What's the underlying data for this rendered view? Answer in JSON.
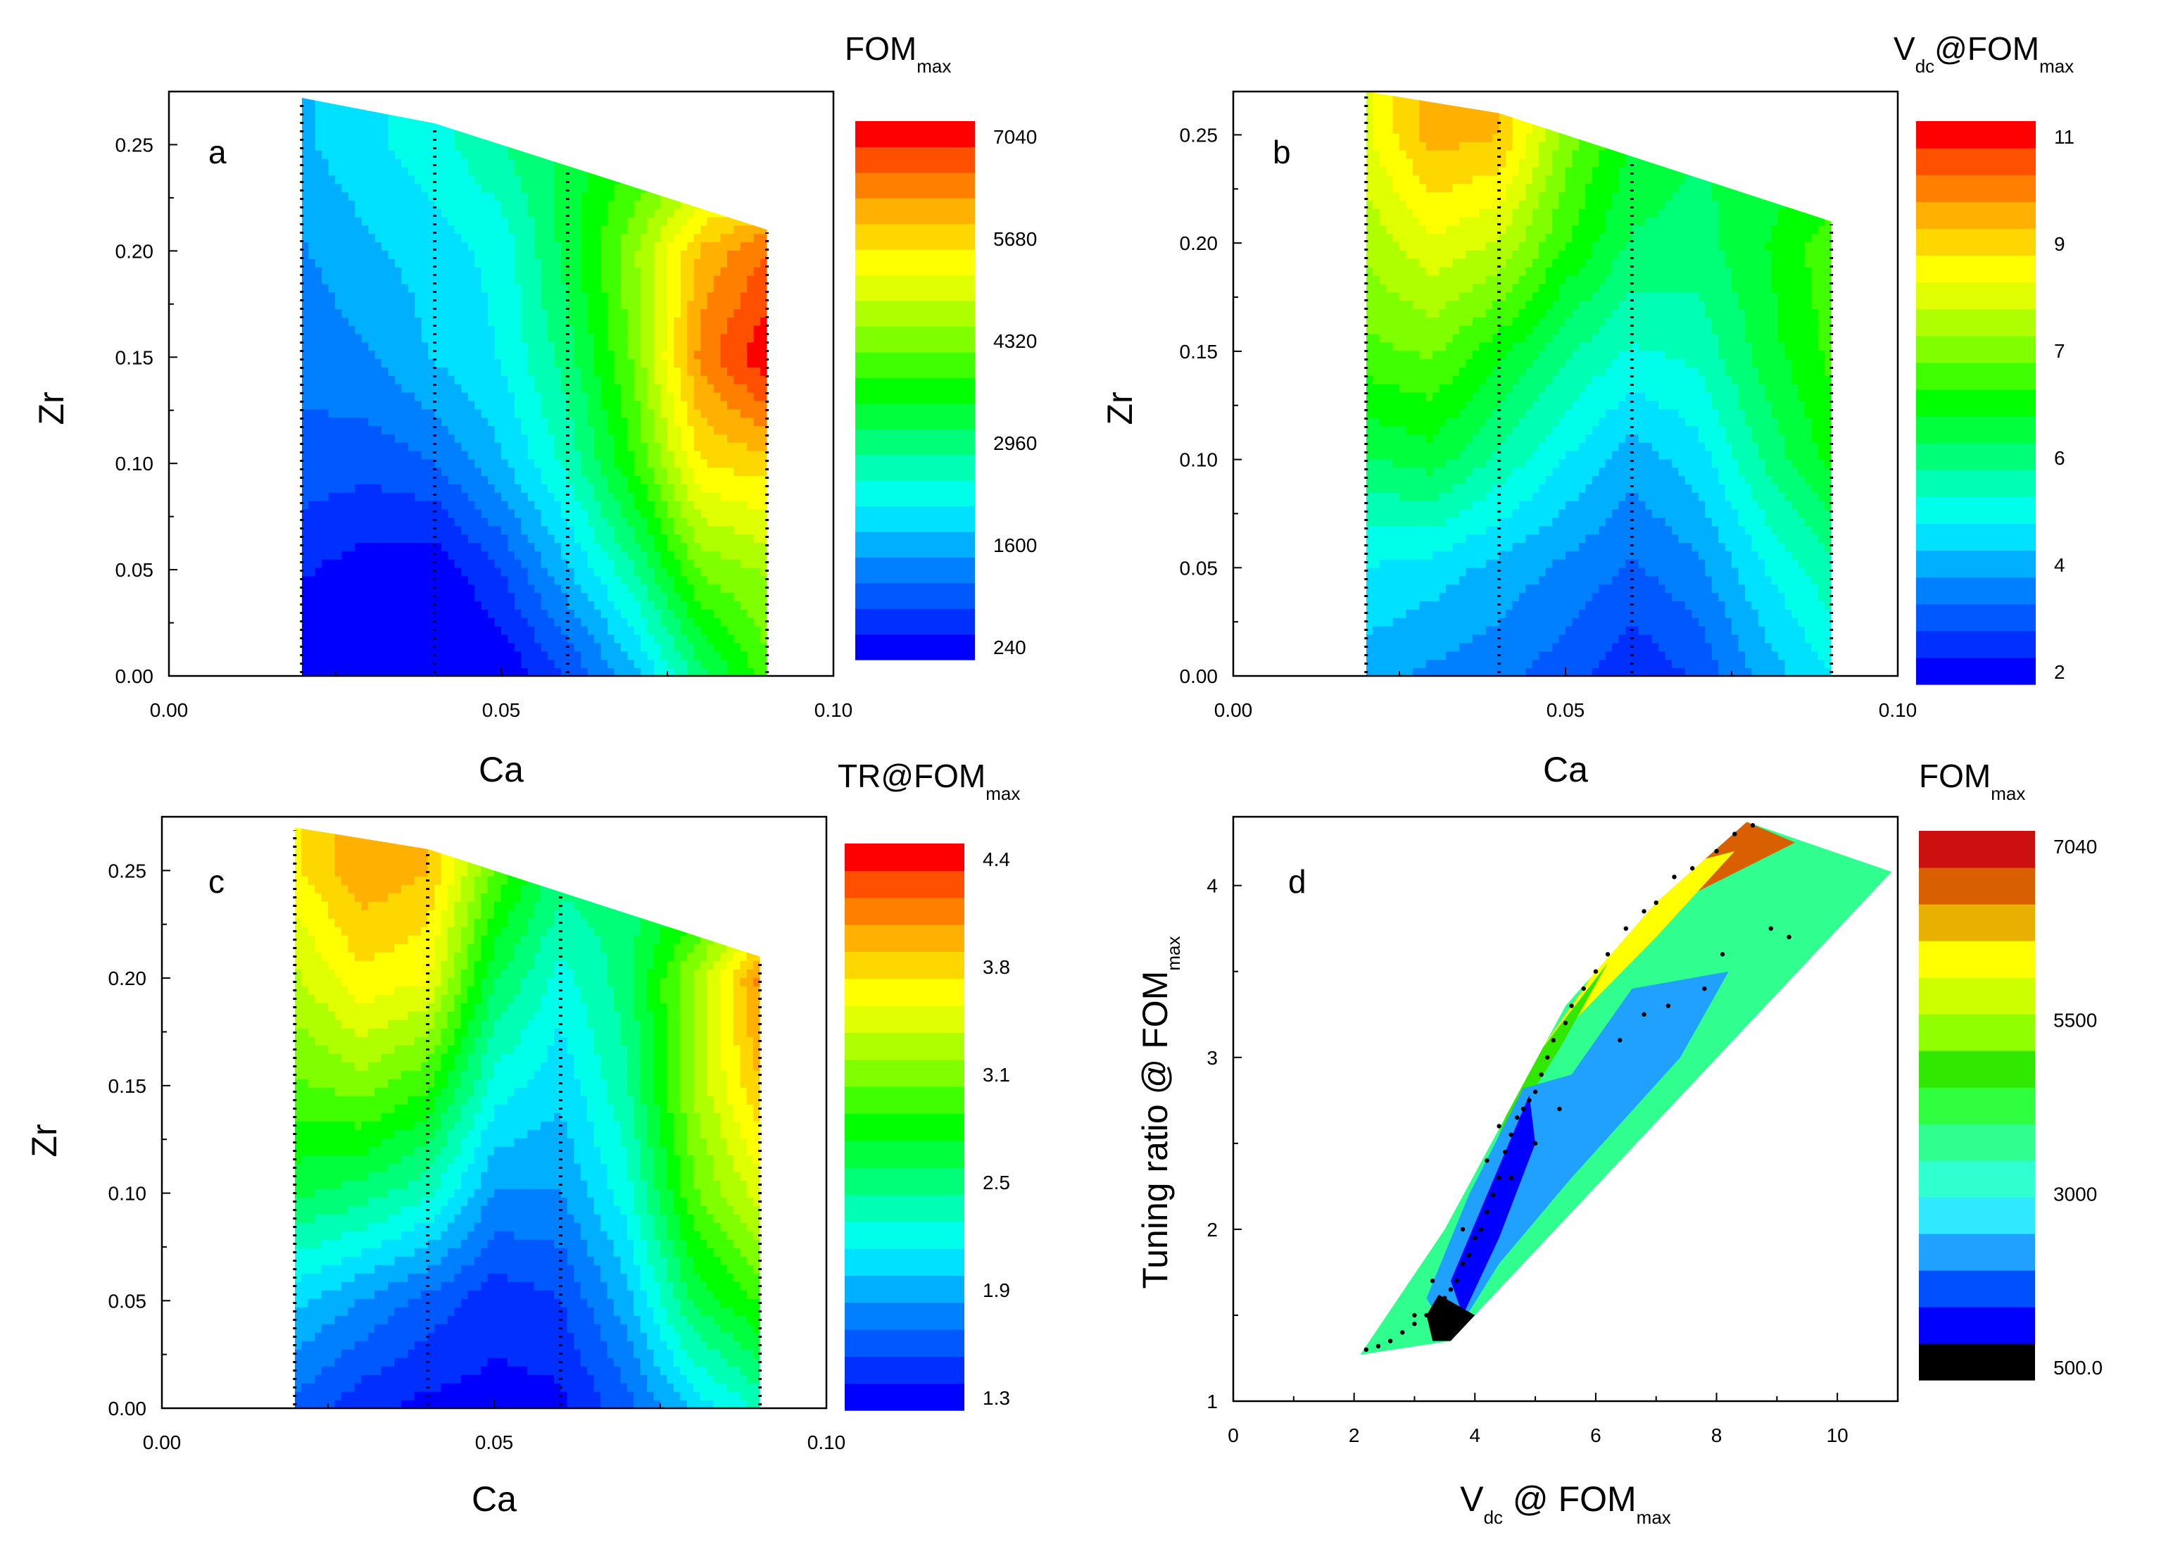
{
  "figure": {
    "panels": [
      "a",
      "b",
      "c",
      "d"
    ]
  },
  "chart_data": [
    {
      "type": "heatmap",
      "panel_label": "a",
      "xlabel": "Ca",
      "ylabel": "Zr",
      "xlim": [
        0.0,
        0.1
      ],
      "ylim": [
        0.0,
        0.275
      ],
      "x_ticks": [
        "0.00",
        "0.05",
        "0.10"
      ],
      "y_ticks": [
        "0.00",
        "0.05",
        "0.10",
        "0.15",
        "0.20",
        "0.25"
      ],
      "colorbar": {
        "title": "FOM",
        "title_sub": "max",
        "tick_labels": [
          "240",
          "1600",
          "2960",
          "4320",
          "5680",
          "7040"
        ],
        "range": [
          240,
          7040
        ],
        "colors": [
          "#0000ff",
          "#0030ff",
          "#0058ff",
          "#0080ff",
          "#00b0ff",
          "#00e0ff",
          "#00ffea",
          "#00ffb4",
          "#00ff78",
          "#00ff3c",
          "#00ff00",
          "#40ff00",
          "#80ff00",
          "#b0ff00",
          "#e0ff00",
          "#ffff00",
          "#ffd700",
          "#ffb000",
          "#ff8000",
          "#ff5000",
          "#ff0000"
        ]
      },
      "x_lines": [
        0.02,
        0.04,
        0.06,
        0.09
      ],
      "boundary_top": [
        [
          0.02,
          0.272
        ],
        [
          0.04,
          0.26
        ],
        [
          0.06,
          0.24
        ],
        [
          0.09,
          0.21
        ]
      ],
      "field": {
        "x": [
          0.02,
          0.03,
          0.04,
          0.05,
          0.06,
          0.07,
          0.08,
          0.09
        ],
        "y": [
          0.0,
          0.05,
          0.1,
          0.15,
          0.2,
          0.25
        ],
        "values": [
          [
            250,
            240,
            240,
            260,
            900,
            1700,
            3000,
            4000
          ],
          [
            600,
            400,
            300,
            900,
            1800,
            2800,
            4200,
            4500
          ],
          [
            1100,
            1000,
            1200,
            1800,
            2600,
            3800,
            5400,
            5600
          ],
          [
            1300,
            1500,
            1900,
            2200,
            3000,
            4200,
            6200,
            7000
          ],
          [
            1500,
            1800,
            2000,
            2300,
            3300,
            4400,
            5800,
            6400
          ],
          [
            1800,
            2100,
            2400,
            2800,
            3300,
            3700,
            4200,
            4500
          ]
        ]
      }
    },
    {
      "type": "heatmap",
      "panel_label": "b",
      "xlabel": "Ca",
      "ylabel": "Zr",
      "xlim": [
        0.0,
        0.1
      ],
      "ylim": [
        0.0,
        0.27
      ],
      "x_ticks": [
        "0.00",
        "0.05",
        "0.10"
      ],
      "y_ticks": [
        "0.00",
        "0.05",
        "0.10",
        "0.15",
        "0.20",
        "0.25"
      ],
      "colorbar": {
        "title": "V",
        "title_sub": "dc",
        "title_tail": "@FOM",
        "title_sub2": "max",
        "tick_labels": [
          "2",
          "4",
          "6",
          "7",
          "9",
          "11"
        ],
        "range": [
          1.5,
          11
        ],
        "colors": [
          "#0000ff",
          "#0030ff",
          "#0058ff",
          "#0080ff",
          "#00b0ff",
          "#00e0ff",
          "#00ffea",
          "#00ffb4",
          "#00ff78",
          "#00ff3c",
          "#00ff00",
          "#40ff00",
          "#80ff00",
          "#b0ff00",
          "#e0ff00",
          "#ffff00",
          "#ffd700",
          "#ffb000",
          "#ff8000",
          "#ff5000",
          "#ff0000"
        ]
      },
      "x_lines": [
        0.02,
        0.04,
        0.06,
        0.09
      ],
      "boundary_top": [
        [
          0.02,
          0.27
        ],
        [
          0.04,
          0.26
        ],
        [
          0.06,
          0.24
        ],
        [
          0.09,
          0.21
        ]
      ],
      "field": {
        "x": [
          0.02,
          0.03,
          0.04,
          0.05,
          0.06,
          0.07,
          0.08,
          0.09
        ],
        "y": [
          0.0,
          0.05,
          0.1,
          0.15,
          0.2,
          0.25
        ],
        "values": [
          [
            3.5,
            3.2,
            3.0,
            2.6,
            2.0,
            2.5,
            3.5,
            4.2
          ],
          [
            4.2,
            4.0,
            3.6,
            3.2,
            2.8,
            3.2,
            4.2,
            5.0
          ],
          [
            5.5,
            5.8,
            5.0,
            4.2,
            3.5,
            4.0,
            5.2,
            6.2
          ],
          [
            6.8,
            7.0,
            6.2,
            5.2,
            4.6,
            4.8,
            5.8,
            6.6
          ],
          [
            7.5,
            8.2,
            7.8,
            6.5,
            5.5,
            5.4,
            6.0,
            6.8
          ],
          [
            8.2,
            9.4,
            9.2,
            7.2,
            6.0,
            5.6,
            5.6,
            5.6
          ]
        ]
      }
    },
    {
      "type": "heatmap",
      "panel_label": "c",
      "xlabel": "Ca",
      "ylabel": "Zr",
      "xlim": [
        0.0,
        0.1
      ],
      "ylim": [
        0.0,
        0.275
      ],
      "x_ticks": [
        "0.00",
        "0.05",
        "0.10"
      ],
      "y_ticks": [
        "0.00",
        "0.05",
        "0.10",
        "0.15",
        "0.20",
        "0.25"
      ],
      "colorbar": {
        "title": "TR@FOM",
        "title_sub": "max",
        "tick_labels": [
          "1.3",
          "1.9",
          "2.5",
          "3.1",
          "3.8",
          "4.4"
        ],
        "range": [
          1.2,
          4.4
        ],
        "colors": [
          "#0000ff",
          "#0030ff",
          "#0058ff",
          "#0080ff",
          "#00b0ff",
          "#00e0ff",
          "#00ffea",
          "#00ffb4",
          "#00ff78",
          "#00ff3c",
          "#00ff00",
          "#40ff00",
          "#80ff00",
          "#b0ff00",
          "#e0ff00",
          "#ffff00",
          "#ffd700",
          "#ffb000",
          "#ff8000",
          "#ff5000",
          "#ff0000"
        ]
      },
      "x_lines": [
        0.02,
        0.04,
        0.06,
        0.09
      ],
      "boundary_top": [
        [
          0.02,
          0.27
        ],
        [
          0.04,
          0.26
        ],
        [
          0.06,
          0.24
        ],
        [
          0.09,
          0.21
        ]
      ],
      "field": {
        "x": [
          0.02,
          0.03,
          0.04,
          0.05,
          0.06,
          0.07,
          0.08,
          0.09
        ],
        "y": [
          0.0,
          0.05,
          0.1,
          0.15,
          0.2,
          0.25
        ],
        "values": [
          [
            1.6,
            1.4,
            1.3,
            1.3,
            1.3,
            1.6,
            2.0,
            2.3
          ],
          [
            2.0,
            1.8,
            1.6,
            1.4,
            1.5,
            1.9,
            2.6,
            2.9
          ],
          [
            2.6,
            2.5,
            2.3,
            1.8,
            1.8,
            2.2,
            3.0,
            3.4
          ],
          [
            3.0,
            3.1,
            2.9,
            2.2,
            2.0,
            2.4,
            3.2,
            3.8
          ],
          [
            3.3,
            3.6,
            3.5,
            2.6,
            2.2,
            2.5,
            3.2,
            4.0
          ],
          [
            3.6,
            3.9,
            3.8,
            3.0,
            2.5,
            2.5,
            2.6,
            2.8
          ]
        ]
      }
    },
    {
      "type": "scatter",
      "panel_label": "d",
      "xlabel": "V",
      "xlabel_sub": "dc",
      "xlabel_tail": " @ FOM",
      "xlabel_sub2": "max",
      "ylabel": "Tuning ratio @ FOM",
      "ylabel_sub": "max",
      "xlim": [
        0,
        11
      ],
      "ylim": [
        1,
        4.4
      ],
      "x_ticks": [
        "0",
        "2",
        "4",
        "6",
        "8",
        "10"
      ],
      "y_ticks": [
        "1",
        "2",
        "3",
        "4"
      ],
      "colorbar": {
        "title": "FOM",
        "title_sub": "max",
        "tick_labels": [
          "500.0",
          "3000",
          "5500",
          "7040"
        ],
        "range": [
          500,
          7040
        ],
        "colors": [
          "#000000",
          "#0000ff",
          "#0050ff",
          "#20a0ff",
          "#30e8ff",
          "#30ffd0",
          "#30ff90",
          "#30ff40",
          "#30e800",
          "#90ff00",
          "#ccff00",
          "#ffff00",
          "#e8b000",
          "#d86000",
          "#cc1010"
        ]
      },
      "hull": [
        [
          2.1,
          1.27
        ],
        [
          3.6,
          1.35
        ],
        [
          10.9,
          4.08
        ],
        [
          8.5,
          4.37
        ],
        [
          7.0,
          3.9
        ],
        [
          5.5,
          3.3
        ],
        [
          3.5,
          2.0
        ]
      ],
      "layers": [
        {
          "value": 6600,
          "points": [
            [
              8.5,
              4.37
            ],
            [
              9.3,
              4.25
            ],
            [
              7.6,
              3.95
            ],
            [
              6.2,
              3.7
            ],
            [
              6.6,
              3.9
            ],
            [
              7.2,
              4.1
            ]
          ]
        },
        {
          "value": 5500,
          "points": [
            [
              7.2,
              4.1
            ],
            [
              8.3,
              4.2
            ],
            [
              7.0,
              3.7
            ],
            [
              5.6,
              3.2
            ],
            [
              5.0,
              3.0
            ],
            [
              5.8,
              3.4
            ],
            [
              6.4,
              3.75
            ]
          ]
        },
        {
          "value": 4300,
          "points": [
            [
              5.0,
              3.0
            ],
            [
              6.2,
              3.55
            ],
            [
              5.4,
              3.05
            ],
            [
              4.6,
              2.6
            ],
            [
              4.3,
              2.45
            ],
            [
              4.6,
              2.75
            ]
          ]
        },
        {
          "value": 2200,
          "points": [
            [
              4.8,
              2.82
            ],
            [
              5.6,
              2.9
            ],
            [
              6.6,
              3.4
            ],
            [
              8.2,
              3.5
            ],
            [
              7.4,
              3.0
            ],
            [
              5.6,
              2.3
            ],
            [
              4.4,
              1.8
            ],
            [
              3.6,
              1.35
            ],
            [
              3.2,
              1.6
            ],
            [
              3.9,
              2.2
            ]
          ]
        },
        {
          "value": 1200,
          "points": [
            [
              3.8,
              1.5
            ],
            [
              4.4,
              1.95
            ],
            [
              5.0,
              2.5
            ],
            [
              4.9,
              2.78
            ],
            [
              4.2,
              2.2
            ],
            [
              3.6,
              1.7
            ]
          ]
        },
        {
          "value": 500,
          "points": [
            [
              3.3,
              1.35
            ],
            [
              3.6,
              1.35
            ],
            [
              4.0,
              1.5
            ],
            [
              3.4,
              1.62
            ],
            [
              3.2,
              1.5
            ]
          ]
        }
      ],
      "points": {
        "x": [
          2.2,
          2.4,
          2.6,
          2.8,
          3.0,
          3.2,
          3.4,
          3.5,
          3.6,
          3.7,
          3.8,
          3.9,
          4.0,
          4.1,
          4.2,
          4.3,
          4.4,
          4.5,
          4.6,
          4.7,
          4.8,
          4.9,
          5.0,
          5.1,
          5.2,
          5.3,
          5.5,
          5.6,
          5.8,
          6.0,
          6.2,
          6.5,
          6.8,
          7.0,
          7.3,
          7.6,
          8.0,
          8.3,
          8.6,
          8.9,
          9.2,
          7.2,
          7.8,
          8.1,
          6.4,
          6.8,
          5.4,
          5.0,
          4.6,
          4.4,
          4.2,
          3.8,
          3.3,
          3.0
        ],
        "y": [
          1.3,
          1.32,
          1.35,
          1.4,
          1.45,
          1.5,
          1.55,
          1.6,
          1.65,
          1.7,
          1.8,
          1.85,
          1.95,
          2.0,
          2.1,
          2.2,
          2.3,
          2.45,
          2.55,
          2.65,
          2.7,
          2.75,
          2.8,
          2.9,
          3.0,
          3.1,
          3.2,
          3.3,
          3.4,
          3.5,
          3.6,
          3.75,
          3.85,
          3.9,
          4.05,
          4.1,
          4.2,
          4.3,
          4.35,
          3.75,
          3.7,
          3.3,
          3.4,
          3.6,
          3.1,
          3.25,
          2.7,
          2.5,
          2.3,
          2.6,
          2.4,
          2.0,
          1.7,
          1.5
        ]
      }
    }
  ]
}
